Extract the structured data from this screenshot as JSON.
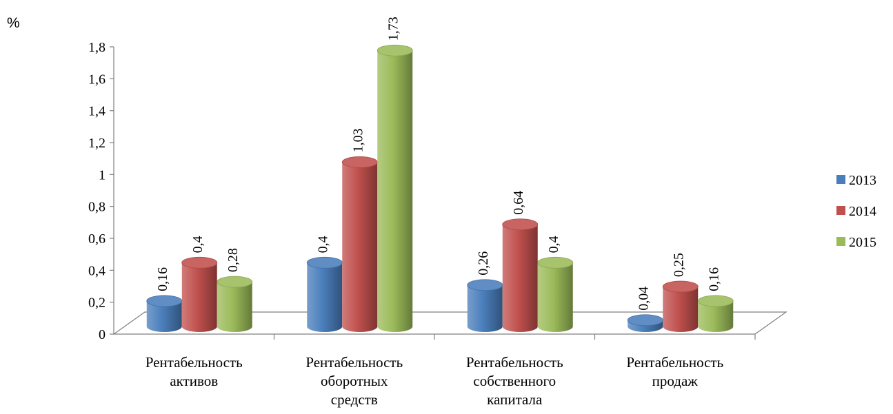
{
  "chart_data": {
    "type": "bar",
    "unit_label": "%",
    "title": "",
    "xlabel": "",
    "ylabel": "%",
    "categories": [
      [
        "Рентабельность",
        "активов"
      ],
      [
        "Рентабельность",
        "оборотных",
        "средств"
      ],
      [
        "Рентабельность",
        "собственного",
        "капитала"
      ],
      [
        "Рентабельность",
        "продаж"
      ]
    ],
    "series": [
      {
        "name": "2013",
        "color": "#4A7EBB",
        "values": [
          0.16,
          0.4,
          0.26,
          0.04
        ],
        "labels": [
          "0,16",
          "0,4",
          "0,26",
          "0,04"
        ]
      },
      {
        "name": "2014",
        "color": "#C0504D",
        "values": [
          0.4,
          1.03,
          0.64,
          0.25
        ],
        "labels": [
          "0,4",
          "1,03",
          "0,64",
          "0,25"
        ]
      },
      {
        "name": "2015",
        "color": "#9BBB59",
        "values": [
          0.28,
          1.73,
          0.4,
          0.16
        ],
        "labels": [
          "0,28",
          "1,73",
          "0,4",
          "0,16"
        ]
      }
    ],
    "ylim": [
      0,
      1.8
    ],
    "yticks": [
      "0",
      "0,2",
      "0,4",
      "0,6",
      "0,8",
      "1",
      "1,2",
      "1,4",
      "1,6",
      "1,8"
    ],
    "grid": false,
    "legend": "right",
    "style": "3d-cylinder"
  }
}
